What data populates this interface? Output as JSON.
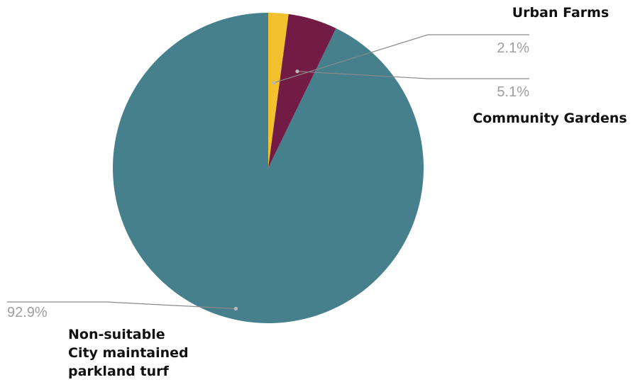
{
  "chart_data": {
    "type": "pie",
    "start": "top",
    "direction": "clockwise",
    "slices": [
      {
        "label_lines": [
          "Urban Farms"
        ],
        "value": 2.1,
        "value_label": "2.1%",
        "color": "#f2c12e"
      },
      {
        "label_lines": [
          "Community Gardens"
        ],
        "value": 5.1,
        "value_label": "5.1%",
        "color": "#721b45"
      },
      {
        "label_lines": [
          "Non-suitable",
          "City maintained",
          "parkland turf"
        ],
        "value": 92.9,
        "value_label": "92.9%",
        "color": "#46808c"
      }
    ]
  }
}
